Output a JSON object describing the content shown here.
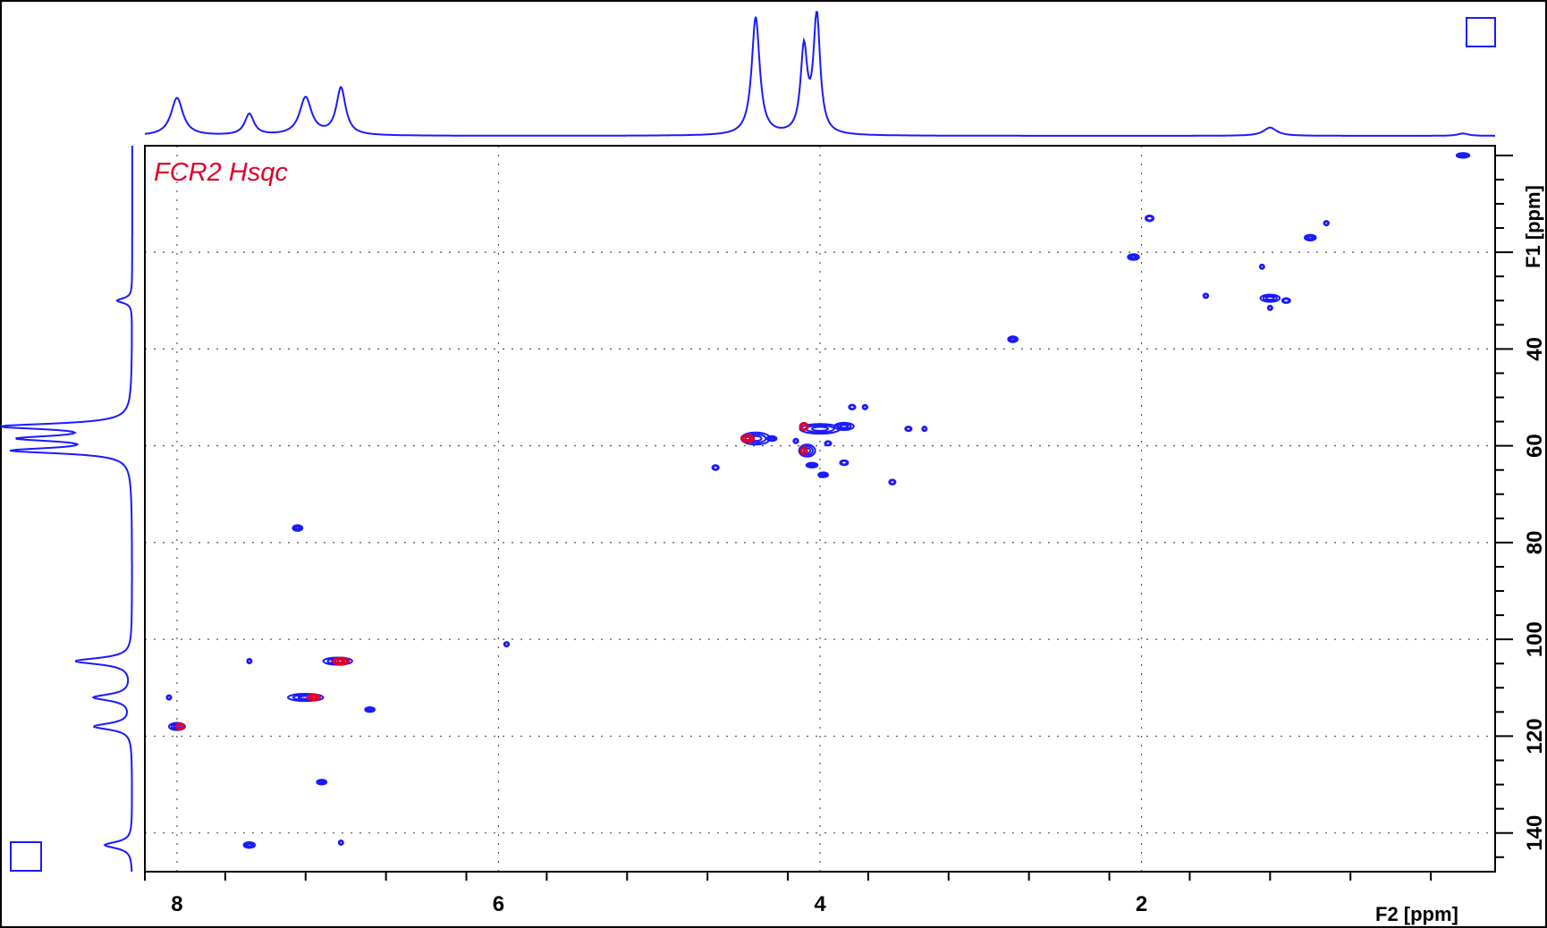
{
  "chart_data": {
    "type": "scatter",
    "title": "FCR2 Hsqc",
    "xlabel": "F2 [ppm]",
    "ylabel": "F1 [ppm]",
    "xlim": [
      8.2,
      -0.2
    ],
    "ylim": [
      -2,
      148
    ],
    "x_ticks": [
      "8",
      "6",
      "4",
      "2"
    ],
    "x_tick_values": [
      8,
      6,
      4,
      2
    ],
    "y_ticks": [
      "40",
      "60",
      "80",
      "100",
      "120",
      "140"
    ],
    "y_tick_values": [
      40,
      60,
      80,
      100,
      120,
      140
    ],
    "grid": true,
    "colors": {
      "positive": "#1a1aff",
      "negative": "#e0002a",
      "frame": "#000000",
      "grid": "#555555"
    },
    "peaks": [
      {
        "x": 0.0,
        "y": 0.0,
        "w": 0.08,
        "h": 1.0,
        "sign": "pos"
      },
      {
        "x": 1.95,
        "y": 13.0,
        "w": 0.05,
        "h": 1.2,
        "sign": "pos"
      },
      {
        "x": 2.05,
        "y": 21.0,
        "w": 0.07,
        "h": 1.2,
        "sign": "pos"
      },
      {
        "x": 0.95,
        "y": 17.0,
        "w": 0.07,
        "h": 1.2,
        "sign": "pos"
      },
      {
        "x": 0.85,
        "y": 14.0,
        "w": 0.03,
        "h": 0.8,
        "sign": "pos"
      },
      {
        "x": 1.2,
        "y": 29.5,
        "w": 0.12,
        "h": 1.5,
        "sign": "pos"
      },
      {
        "x": 1.1,
        "y": 30.0,
        "w": 0.05,
        "h": 1.0,
        "sign": "pos"
      },
      {
        "x": 1.6,
        "y": 29.0,
        "w": 0.03,
        "h": 0.7,
        "sign": "pos"
      },
      {
        "x": 1.25,
        "y": 23.0,
        "w": 0.02,
        "h": 0.5,
        "sign": "pos"
      },
      {
        "x": 1.2,
        "y": 31.5,
        "w": 0.02,
        "h": 0.5,
        "sign": "pos"
      },
      {
        "x": 2.8,
        "y": 38.0,
        "w": 0.06,
        "h": 1.2,
        "sign": "pos"
      },
      {
        "x": 4.4,
        "y": 58.5,
        "w": 0.18,
        "h": 2.5,
        "sign": "pos"
      },
      {
        "x": 4.45,
        "y": 58.5,
        "w": 0.08,
        "h": 1.5,
        "sign": "neg"
      },
      {
        "x": 4.3,
        "y": 58.5,
        "w": 0.06,
        "h": 1.0,
        "sign": "pos"
      },
      {
        "x": 4.0,
        "y": 56.5,
        "w": 0.25,
        "h": 2.0,
        "sign": "pos"
      },
      {
        "x": 4.1,
        "y": 56.0,
        "w": 0.05,
        "h": 1.5,
        "sign": "neg"
      },
      {
        "x": 3.85,
        "y": 56.0,
        "w": 0.12,
        "h": 1.5,
        "sign": "pos"
      },
      {
        "x": 4.08,
        "y": 61.0,
        "w": 0.1,
        "h": 2.5,
        "sign": "pos"
      },
      {
        "x": 4.1,
        "y": 61.0,
        "w": 0.04,
        "h": 1.5,
        "sign": "neg"
      },
      {
        "x": 4.05,
        "y": 64.0,
        "w": 0.07,
        "h": 1.0,
        "sign": "pos"
      },
      {
        "x": 3.98,
        "y": 66.0,
        "w": 0.06,
        "h": 1.0,
        "sign": "pos"
      },
      {
        "x": 3.8,
        "y": 52.0,
        "w": 0.04,
        "h": 1.0,
        "sign": "pos"
      },
      {
        "x": 3.72,
        "y": 52.0,
        "w": 0.03,
        "h": 0.7,
        "sign": "pos"
      },
      {
        "x": 3.45,
        "y": 56.5,
        "w": 0.04,
        "h": 0.8,
        "sign": "pos"
      },
      {
        "x": 3.35,
        "y": 56.5,
        "w": 0.02,
        "h": 0.6,
        "sign": "pos"
      },
      {
        "x": 3.85,
        "y": 63.5,
        "w": 0.05,
        "h": 1.0,
        "sign": "pos"
      },
      {
        "x": 3.55,
        "y": 67.5,
        "w": 0.04,
        "h": 1.0,
        "sign": "pos"
      },
      {
        "x": 4.65,
        "y": 64.5,
        "w": 0.04,
        "h": 1.0,
        "sign": "pos"
      },
      {
        "x": 4.15,
        "y": 59.0,
        "w": 0.03,
        "h": 0.6,
        "sign": "pos"
      },
      {
        "x": 3.95,
        "y": 59.5,
        "w": 0.04,
        "h": 0.6,
        "sign": "pos"
      },
      {
        "x": 7.25,
        "y": 77.0,
        "w": 0.06,
        "h": 1.2,
        "sign": "pos"
      },
      {
        "x": 5.95,
        "y": 101.0,
        "w": 0.03,
        "h": 0.8,
        "sign": "pos"
      },
      {
        "x": 7.0,
        "y": 104.5,
        "w": 0.18,
        "h": 1.5,
        "sign": "pos"
      },
      {
        "x": 6.98,
        "y": 104.5,
        "w": 0.1,
        "h": 1.5,
        "sign": "neg"
      },
      {
        "x": 7.55,
        "y": 104.5,
        "w": 0.02,
        "h": 0.5,
        "sign": "pos"
      },
      {
        "x": 7.2,
        "y": 112.0,
        "w": 0.22,
        "h": 1.5,
        "sign": "pos"
      },
      {
        "x": 7.15,
        "y": 112.0,
        "w": 0.08,
        "h": 1.3,
        "sign": "neg"
      },
      {
        "x": 6.8,
        "y": 114.5,
        "w": 0.06,
        "h": 1.0,
        "sign": "pos"
      },
      {
        "x": 8.0,
        "y": 118.0,
        "w": 0.1,
        "h": 1.5,
        "sign": "pos"
      },
      {
        "x": 7.98,
        "y": 118.0,
        "w": 0.05,
        "h": 1.3,
        "sign": "neg"
      },
      {
        "x": 8.05,
        "y": 112.0,
        "w": 0.02,
        "h": 0.6,
        "sign": "pos"
      },
      {
        "x": 7.1,
        "y": 129.5,
        "w": 0.06,
        "h": 1.0,
        "sign": "pos"
      },
      {
        "x": 7.55,
        "y": 142.5,
        "w": 0.07,
        "h": 1.2,
        "sign": "pos"
      },
      {
        "x": 6.98,
        "y": 142.0,
        "w": 0.02,
        "h": 0.5,
        "sign": "pos"
      }
    ],
    "projection_f2": [
      {
        "x": 8.0,
        "height": 0.32,
        "width": 0.045
      },
      {
        "x": 7.55,
        "height": 0.18,
        "width": 0.035
      },
      {
        "x": 7.2,
        "height": 0.32,
        "width": 0.045
      },
      {
        "x": 6.98,
        "height": 0.4,
        "width": 0.035
      },
      {
        "x": 4.4,
        "height": 1.0,
        "width": 0.03
      },
      {
        "x": 4.1,
        "height": 0.71,
        "width": 0.025
      },
      {
        "x": 4.02,
        "height": 1.0,
        "width": 0.025
      },
      {
        "x": 1.2,
        "height": 0.07,
        "width": 0.05
      },
      {
        "x": 0.0,
        "height": 0.02,
        "width": 0.04
      }
    ],
    "projection_f1": [
      {
        "y": 30.0,
        "height": 0.12,
        "width": 0.6
      },
      {
        "y": 56.0,
        "height": 1.0,
        "width": 0.7
      },
      {
        "y": 58.5,
        "height": 0.8,
        "width": 0.7
      },
      {
        "y": 61.0,
        "height": 0.9,
        "width": 0.7
      },
      {
        "y": 104.5,
        "height": 0.45,
        "width": 0.8
      },
      {
        "y": 112.0,
        "height": 0.3,
        "width": 0.8
      },
      {
        "y": 118.0,
        "height": 0.3,
        "width": 0.8
      },
      {
        "y": 142.5,
        "height": 0.22,
        "width": 0.8
      }
    ]
  }
}
